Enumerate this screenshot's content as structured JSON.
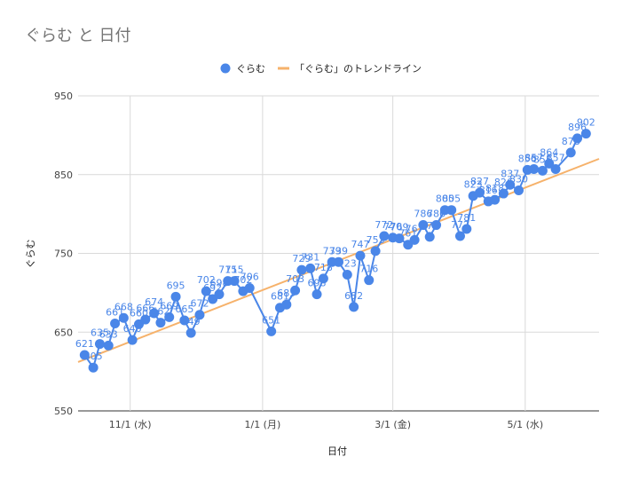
{
  "chart_data": {
    "type": "line",
    "title": "ぐらむ と 日付",
    "xlabel": "日付",
    "ylabel": "ぐらむ",
    "ylim": [
      550,
      950
    ],
    "yticks": [
      550,
      650,
      750,
      850,
      950
    ],
    "x_ticks": [
      {
        "label": "11/1 (水)",
        "date": "2023-11-01"
      },
      {
        "label": "1/1 (月)",
        "date": "2024-01-01"
      },
      {
        "label": "3/1 (金)",
        "date": "2024-03-01"
      },
      {
        "label": "5/1 (水)",
        "date": "2024-05-01"
      }
    ],
    "xlim": [
      "2023-10-08",
      "2024-06-04"
    ],
    "grid": true,
    "legend_position": "top",
    "colors": {
      "series": "#4a86e8",
      "trend": "#f6b26b"
    },
    "series": [
      {
        "name": "ぐらむ",
        "points": [
          {
            "date": "2023-10-11",
            "value": 621
          },
          {
            "date": "2023-10-15",
            "value": 605
          },
          {
            "date": "2023-10-18",
            "value": 635
          },
          {
            "date": "2023-10-22",
            "value": 633
          },
          {
            "date": "2023-10-25",
            "value": 661
          },
          {
            "date": "2023-10-29",
            "value": 668
          },
          {
            "date": "2023-11-02",
            "value": 640
          },
          {
            "date": "2023-11-05",
            "value": 660
          },
          {
            "date": "2023-11-08",
            "value": 666
          },
          {
            "date": "2023-11-12",
            "value": 674
          },
          {
            "date": "2023-11-15",
            "value": 662
          },
          {
            "date": "2023-11-19",
            "value": 669
          },
          {
            "date": "2023-11-22",
            "value": 695
          },
          {
            "date": "2023-11-26",
            "value": 665
          },
          {
            "date": "2023-11-29",
            "value": 649
          },
          {
            "date": "2023-12-03",
            "value": 672
          },
          {
            "date": "2023-12-06",
            "value": 702
          },
          {
            "date": "2023-12-09",
            "value": 692
          },
          {
            "date": "2023-12-12",
            "value": 698
          },
          {
            "date": "2023-12-16",
            "value": 715
          },
          {
            "date": "2023-12-19",
            "value": 715
          },
          {
            "date": "2023-12-23",
            "value": 702
          },
          {
            "date": "2023-12-26",
            "value": 706
          },
          {
            "date": "2024-01-05",
            "value": 651
          },
          {
            "date": "2024-01-09",
            "value": 681
          },
          {
            "date": "2024-01-12",
            "value": 685
          },
          {
            "date": "2024-01-16",
            "value": 703
          },
          {
            "date": "2024-01-19",
            "value": 729
          },
          {
            "date": "2024-01-23",
            "value": 731
          },
          {
            "date": "2024-01-26",
            "value": 698
          },
          {
            "date": "2024-01-29",
            "value": 718
          },
          {
            "date": "2024-02-02",
            "value": 739
          },
          {
            "date": "2024-02-05",
            "value": 739
          },
          {
            "date": "2024-02-09",
            "value": 723
          },
          {
            "date": "2024-02-12",
            "value": 682
          },
          {
            "date": "2024-02-15",
            "value": 747
          },
          {
            "date": "2024-02-19",
            "value": 716
          },
          {
            "date": "2024-02-22",
            "value": 753
          },
          {
            "date": "2024-02-26",
            "value": 772
          },
          {
            "date": "2024-03-01",
            "value": 770
          },
          {
            "date": "2024-03-04",
            "value": 769
          },
          {
            "date": "2024-03-08",
            "value": 761
          },
          {
            "date": "2024-03-11",
            "value": 767
          },
          {
            "date": "2024-03-15",
            "value": 786
          },
          {
            "date": "2024-03-18",
            "value": 771
          },
          {
            "date": "2024-03-21",
            "value": 786
          },
          {
            "date": "2024-03-25",
            "value": 805
          },
          {
            "date": "2024-03-28",
            "value": 805
          },
          {
            "date": "2024-04-01",
            "value": 772
          },
          {
            "date": "2024-04-04",
            "value": 781
          },
          {
            "date": "2024-04-07",
            "value": 823
          },
          {
            "date": "2024-04-10",
            "value": 827
          },
          {
            "date": "2024-04-14",
            "value": 816
          },
          {
            "date": "2024-04-17",
            "value": 818
          },
          {
            "date": "2024-04-21",
            "value": 826
          },
          {
            "date": "2024-04-24",
            "value": 837
          },
          {
            "date": "2024-04-28",
            "value": 830
          },
          {
            "date": "2024-05-02",
            "value": 856
          },
          {
            "date": "2024-05-05",
            "value": 857
          },
          {
            "date": "2024-05-09",
            "value": 855
          },
          {
            "date": "2024-05-12",
            "value": 864
          },
          {
            "date": "2024-05-15",
            "value": 857
          },
          {
            "date": "2024-05-22",
            "value": 878
          },
          {
            "date": "2024-05-25",
            "value": 896
          },
          {
            "date": "2024-05-29",
            "value": 902
          }
        ]
      },
      {
        "name": "「ぐらむ」のトレンドライン",
        "style": "trendline",
        "points": [
          {
            "date": "2023-10-08",
            "value": 612
          },
          {
            "date": "2024-06-04",
            "value": 870
          }
        ]
      }
    ]
  }
}
